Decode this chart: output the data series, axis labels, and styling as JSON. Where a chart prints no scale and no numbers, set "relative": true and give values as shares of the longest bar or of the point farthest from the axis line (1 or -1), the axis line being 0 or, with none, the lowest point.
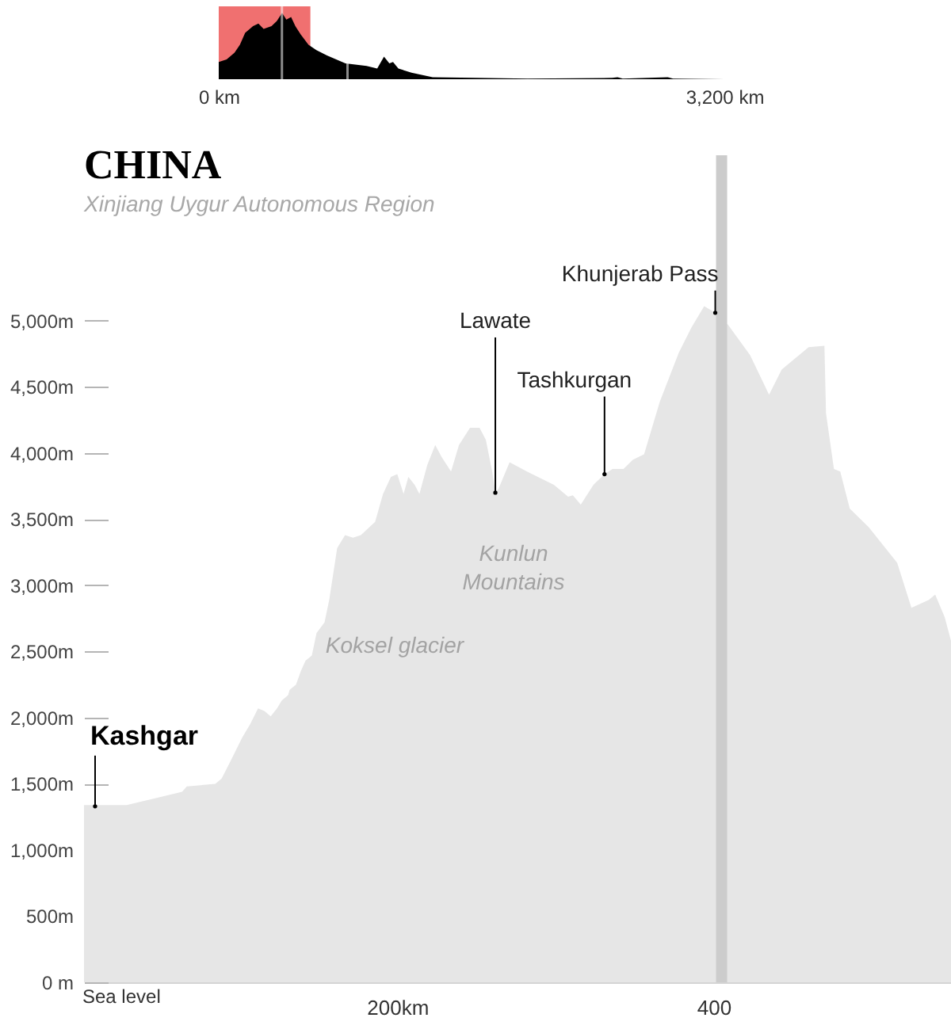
{
  "chart_data": [
    {
      "type": "area",
      "x": [
        0,
        50,
        100,
        134,
        167,
        217,
        251,
        284,
        334,
        368,
        401,
        428,
        458,
        485,
        518,
        568,
        618,
        685,
        802,
        936,
        1003,
        1046,
        1080,
        1103,
        1137,
        1220,
        1354,
        1621,
        1956,
        2491,
        2524,
        2557,
        2842,
        2875,
        3200
      ],
      "series": [
        {
          "color": "#000000",
          "values": [
            0.26,
            0.3,
            0.4,
            0.52,
            0.7,
            0.8,
            0.84,
            0.76,
            0.8,
            0.88,
            1,
            0.9,
            0.94,
            0.8,
            0.68,
            0.52,
            0.44,
            0.36,
            0.24,
            0.2,
            0.16,
            0.34,
            0.24,
            0.26,
            0.16,
            0.1,
            0.03,
            0.02,
            0.01,
            0.02,
            0.03,
            0.01,
            0.03,
            0.01,
            0
          ]
        }
      ],
      "relative": true,
      "xlim": [
        0,
        3200
      ],
      "xticks": [
        {
          "value": 0,
          "label": "0 km"
        },
        {
          "value": 3200,
          "label": "3,200 km"
        }
      ],
      "tick_labels": "x",
      "bands": [
        {
          "axis": "x",
          "from": 0,
          "to": 580,
          "color": "#f07070"
        }
      ],
      "ref_lines": [
        {
          "axis": "x",
          "value": 400,
          "color": "#ffffff"
        },
        {
          "axis": "x",
          "value": 815,
          "color": "#ffffff"
        }
      ]
    },
    {
      "type": "area",
      "title": "CHINA",
      "subtitle": "Xinjiang Uygur Autonomous Region",
      "x": [
        2,
        29,
        50,
        64,
        67,
        85,
        89,
        95,
        102,
        107,
        112,
        116,
        120,
        124,
        127,
        131,
        132,
        136,
        139,
        142,
        146,
        149,
        154,
        157,
        162,
        167,
        172,
        177,
        186,
        191,
        196,
        200,
        204,
        207,
        211,
        214,
        219,
        224,
        228,
        234,
        239,
        246,
        252,
        256,
        260,
        262,
        264,
        271,
        282,
        299,
        308,
        311,
        316,
        324,
        331,
        336,
        343,
        349,
        356,
        366,
        378,
        386,
        394,
        401,
        409,
        423,
        435,
        443,
        449,
        460,
        470,
        471,
        476,
        480,
        486,
        498,
        506,
        516,
        525,
        536,
        540,
        546,
        550
      ],
      "series": [
        {
          "color": "#e6e6e6",
          "values": [
            1340,
            1340,
            1400,
            1440,
            1480,
            1500,
            1540,
            1680,
            1850,
            1950,
            2070,
            2050,
            2010,
            2070,
            2130,
            2170,
            2210,
            2250,
            2350,
            2430,
            2470,
            2640,
            2720,
            2890,
            3280,
            3380,
            3360,
            3380,
            3480,
            3690,
            3820,
            3840,
            3690,
            3820,
            3760,
            3690,
            3910,
            4060,
            3970,
            3860,
            4060,
            4190,
            4190,
            4100,
            3860,
            3700,
            3730,
            3930,
            3860,
            3760,
            3670,
            3680,
            3610,
            3760,
            3840,
            3880,
            3880,
            3950,
            3990,
            4390,
            4760,
            4950,
            5110,
            5060,
            4970,
            4740,
            4440,
            4630,
            4690,
            4800,
            4810,
            4300,
            3880,
            3860,
            3580,
            3440,
            3320,
            3170,
            2830,
            2890,
            2930,
            2760,
            2580
          ]
        }
      ],
      "xlim": [
        2,
        550
      ],
      "xticks": [
        {
          "value": 200,
          "label": "200km"
        },
        400
      ],
      "ylim": [
        0,
        6250
      ],
      "yticks": [
        {
          "value": 0,
          "label": "0 m"
        },
        {
          "value": 500,
          "label": "500m"
        },
        {
          "value": 1000,
          "label": "1,000m"
        },
        {
          "value": 1500,
          "label": "1,500m"
        },
        {
          "value": 2000,
          "label": "2,000m"
        },
        {
          "value": 2500,
          "label": "2,500m"
        },
        {
          "value": 3000,
          "label": "3,000m"
        },
        {
          "value": 3500,
          "label": "3,500m"
        },
        {
          "value": 4000,
          "label": "4,000m"
        },
        {
          "value": 4500,
          "label": "4,500m"
        },
        {
          "value": 5000,
          "label": "5,000m"
        }
      ],
      "ref_lines": [
        {
          "axis": "x",
          "value": 405,
          "color": "#cccccc"
        }
      ],
      "annotations": [
        {
          "text": "Kashgar",
          "x": 9,
          "y": 1330
        },
        {
          "text": "Lawate",
          "x": 262,
          "y": 3700
        },
        {
          "text": "Tashkurgan",
          "x": 331,
          "y": 3840
        },
        {
          "text": "Khunjerab Pass",
          "x": 401,
          "y": 5060
        },
        "Koksel glacier",
        "Kunlun\nMountains",
        {
          "text": "Sea level",
          "x": 2,
          "y": 0
        }
      ]
    }
  ]
}
